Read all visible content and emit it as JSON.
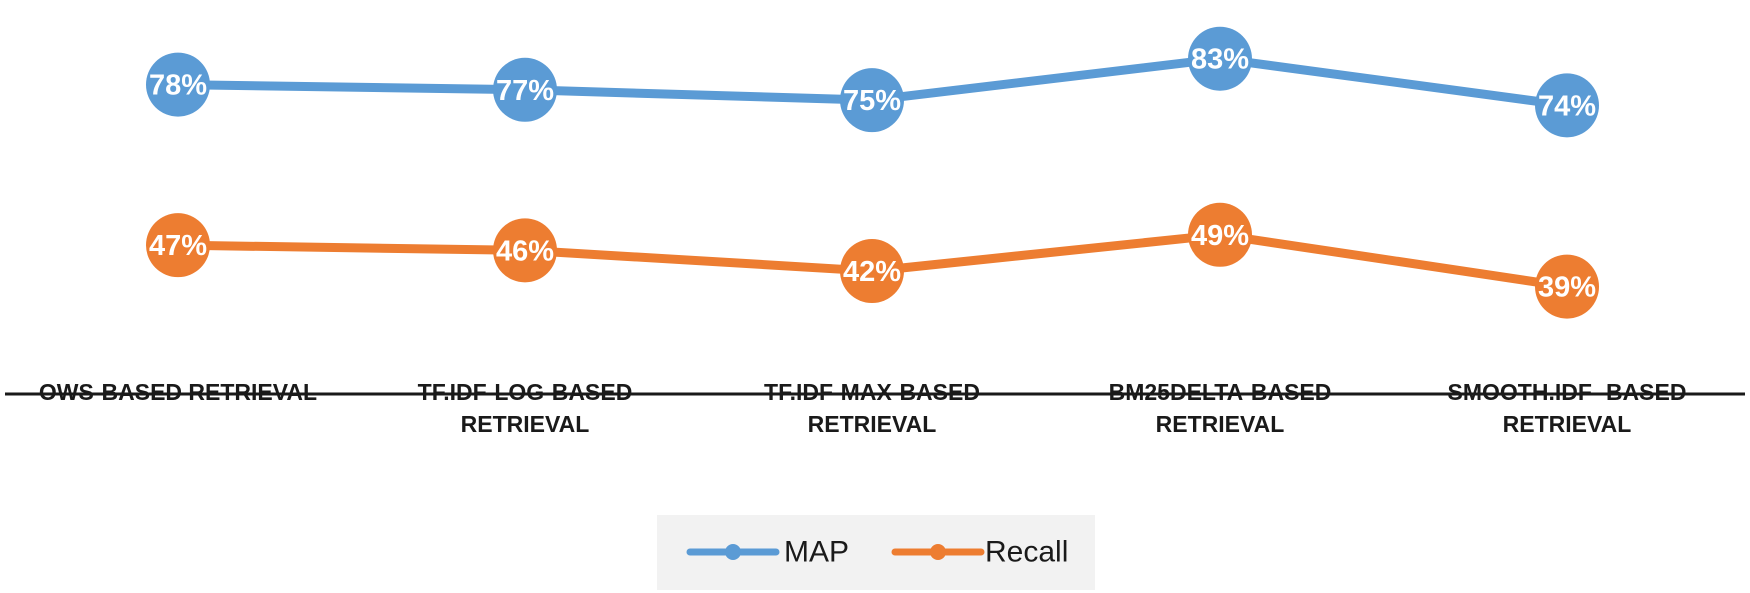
{
  "chart_data": {
    "type": "line",
    "categories": [
      [
        "OWS-BASED RETRIEVAL"
      ],
      [
        "TF.IDF-LOG-BASED",
        "RETRIEVAL"
      ],
      [
        "TF.IDF-MAX-BASED",
        "RETRIEVAL"
      ],
      [
        "BM25DELTA-BASED",
        "RETRIEVAL"
      ],
      [
        "SMOOTH.IDF -BASED",
        "RETRIEVAL"
      ]
    ],
    "series": [
      {
        "name": "MAP",
        "values": [
          78,
          77,
          75,
          83,
          74
        ],
        "labels": [
          "78%",
          "77%",
          "75%",
          "83%",
          "74%"
        ],
        "color": "#5b9bd5"
      },
      {
        "name": "Recall",
        "values": [
          47,
          46,
          42,
          49,
          39
        ],
        "labels": [
          "47%",
          "46%",
          "42%",
          "49%",
          "39%"
        ],
        "color": "#ed7d31"
      }
    ],
    "title": "",
    "xlabel": "",
    "ylabel": "",
    "ylim": [
      20,
      87
    ],
    "grid": false,
    "legend": "bottom"
  }
}
